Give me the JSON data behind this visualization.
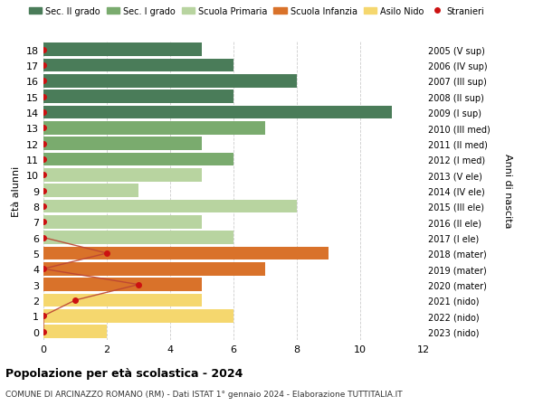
{
  "ages": [
    18,
    17,
    16,
    15,
    14,
    13,
    12,
    11,
    10,
    9,
    8,
    7,
    6,
    5,
    4,
    3,
    2,
    1,
    0
  ],
  "right_labels": [
    "2005 (V sup)",
    "2006 (IV sup)",
    "2007 (III sup)",
    "2008 (II sup)",
    "2009 (I sup)",
    "2010 (III med)",
    "2011 (II med)",
    "2012 (I med)",
    "2013 (V ele)",
    "2014 (IV ele)",
    "2015 (III ele)",
    "2016 (II ele)",
    "2017 (I ele)",
    "2018 (mater)",
    "2019 (mater)",
    "2020 (mater)",
    "2021 (nido)",
    "2022 (nido)",
    "2023 (nido)"
  ],
  "bar_values": [
    5,
    6,
    8,
    6,
    11,
    7,
    5,
    6,
    5,
    3,
    8,
    5,
    6,
    9,
    7,
    5,
    5,
    6,
    2
  ],
  "bar_colors": [
    "#4a7c59",
    "#4a7c59",
    "#4a7c59",
    "#4a7c59",
    "#4a7c59",
    "#7aab6e",
    "#7aab6e",
    "#7aab6e",
    "#b8d4a0",
    "#b8d4a0",
    "#b8d4a0",
    "#b8d4a0",
    "#b8d4a0",
    "#d9722a",
    "#d9722a",
    "#d9722a",
    "#f5d76e",
    "#f5d76e",
    "#f5d76e"
  ],
  "stranieri_values": [
    0,
    0,
    0,
    0,
    0,
    0,
    0,
    0,
    0,
    0,
    0,
    0,
    0,
    2,
    0,
    3,
    1,
    0,
    0
  ],
  "stranieri_color": "#cc1111",
  "stranieri_line_color": "#bb4433",
  "title_bold": "Popolazione per età scolastica - 2024",
  "subtitle": "COMUNE DI ARCINAZZO ROMANO (RM) - Dati ISTAT 1° gennaio 2024 - Elaborazione TUTTITALIA.IT",
  "ylabel_left": "Età alunni",
  "ylabel_right": "Anni di nascita",
  "xlim": [
    0,
    12
  ],
  "xticks": [
    0,
    2,
    4,
    6,
    8,
    10,
    12
  ],
  "legend_labels": [
    "Sec. II grado",
    "Sec. I grado",
    "Scuola Primaria",
    "Scuola Infanzia",
    "Asilo Nido",
    "Stranieri"
  ],
  "legend_colors": [
    "#4a7c59",
    "#7aab6e",
    "#b8d4a0",
    "#d9722a",
    "#f5d76e",
    "#cc1111"
  ],
  "bg_color": "#ffffff",
  "grid_color": "#cccccc"
}
